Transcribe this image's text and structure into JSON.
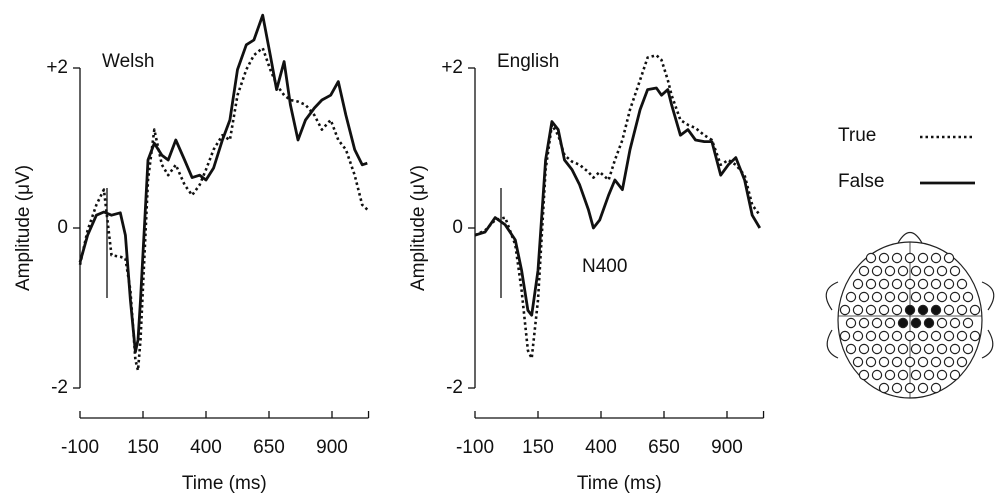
{
  "chart_data": [
    {
      "type": "line",
      "annotation": "Welsh",
      "x_label": "Time (ms)",
      "y_label": "Amplitude (μV)",
      "x": [
        -100,
        -70,
        -35,
        -5,
        25,
        60,
        80,
        100,
        120,
        130,
        140,
        170,
        195,
        225,
        250,
        280,
        315,
        345,
        375,
        400,
        430,
        465,
        495,
        525,
        560,
        590,
        625,
        655,
        680,
        710,
        735,
        765,
        795,
        830,
        860,
        895,
        925,
        955,
        990,
        1020,
        1040
      ],
      "series": [
        {
          "name": "True",
          "color": "#111111",
          "style": "dotted",
          "values": [
            -0.46,
            -0.03,
            0.29,
            0.48,
            -0.34,
            -0.36,
            -0.38,
            -0.78,
            -1.65,
            -1.78,
            -1.4,
            0.6,
            1.23,
            0.79,
            0.66,
            0.79,
            0.54,
            0.41,
            0.54,
            0.73,
            0.98,
            1.16,
            1.1,
            1.66,
            1.98,
            2.16,
            2.25,
            1.98,
            1.79,
            1.66,
            1.6,
            1.58,
            1.54,
            1.41,
            1.23,
            1.35,
            1.1,
            0.98,
            0.66,
            0.29,
            0.23
          ]
        },
        {
          "name": "False",
          "color": "#111111",
          "style": "solid",
          "values": [
            -0.43,
            -0.09,
            0.16,
            0.2,
            0.16,
            0.19,
            -0.09,
            -0.9,
            -1.55,
            -1.4,
            -0.9,
            0.85,
            1.06,
            0.91,
            0.85,
            1.1,
            0.85,
            0.63,
            0.66,
            0.6,
            0.75,
            1.1,
            1.35,
            1.98,
            2.29,
            2.35,
            2.66,
            2.16,
            1.73,
            2.08,
            1.54,
            1.1,
            1.35,
            1.5,
            1.6,
            1.66,
            1.83,
            1.41,
            0.98,
            0.79,
            0.81
          ]
        }
      ],
      "xlim": [
        -100,
        1045
      ],
      "xticks": [
        -100,
        150,
        400,
        650,
        900
      ],
      "ylim": [
        -2.4,
        2.6
      ],
      "yticks": [
        -2,
        0,
        {
          "value": 2,
          "label": "+2"
        }
      ]
    },
    {
      "type": "line",
      "annotation": "English",
      "annotation2": "N400",
      "x_label": "Time (ms)",
      "y_label": "Amplitude (μV)",
      "x": [
        -100,
        -60,
        -20,
        20,
        60,
        85,
        110,
        125,
        150,
        180,
        205,
        230,
        255,
        285,
        315,
        350,
        370,
        395,
        430,
        455,
        485,
        515,
        555,
        585,
        620,
        640,
        665,
        680,
        715,
        745,
        775,
        810,
        840,
        875,
        905,
        935,
        970,
        1000,
        1030
      ],
      "series": [
        {
          "name": "True",
          "color": "#111111",
          "style": "dotted",
          "values": [
            -0.09,
            -0.03,
            0.1,
            0.13,
            -0.21,
            -0.78,
            -1.53,
            -1.63,
            -0.9,
            0.73,
            1.29,
            1.16,
            0.91,
            0.83,
            0.79,
            0.7,
            0.63,
            0.7,
            0.6,
            0.85,
            1.1,
            1.48,
            1.85,
            2.13,
            2.16,
            2.1,
            1.85,
            1.66,
            1.35,
            1.29,
            1.25,
            1.16,
            1.1,
            0.79,
            0.85,
            0.79,
            0.66,
            0.29,
            0.16
          ]
        },
        {
          "name": "False",
          "color": "#111111",
          "style": "solid",
          "values": [
            -0.09,
            -0.05,
            0.13,
            0.04,
            -0.15,
            -0.53,
            -1.03,
            -1.09,
            -0.53,
            0.85,
            1.33,
            1.23,
            0.85,
            0.73,
            0.54,
            0.23,
            0,
            0.1,
            0.41,
            0.6,
            0.48,
            0.98,
            1.48,
            1.73,
            1.75,
            1.66,
            1.73,
            1.54,
            1.16,
            1.23,
            1.1,
            1.08,
            1.08,
            0.66,
            0.79,
            0.88,
            0.6,
            0.16,
            0
          ]
        }
      ],
      "xlim": [
        -100,
        1045
      ],
      "xticks": [
        -100,
        150,
        400,
        650,
        900
      ],
      "ylim": [
        -2.4,
        2.6
      ],
      "yticks": [
        -2,
        0,
        {
          "value": 2,
          "label": "+2"
        }
      ]
    }
  ]
}
